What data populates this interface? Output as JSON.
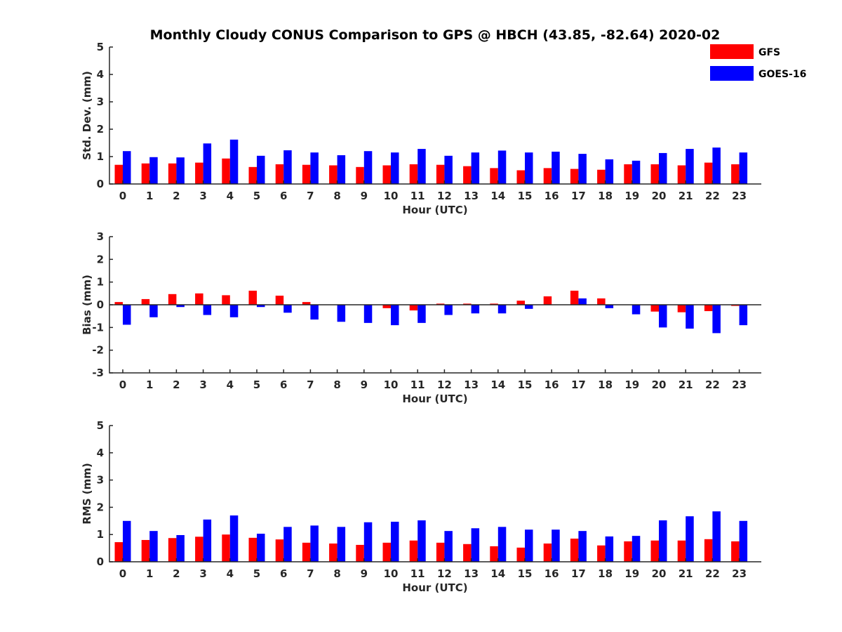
{
  "figure_title": "Monthly Cloudy CONUS Comparison to GPS @ HBCH (43.85, -82.64) 2020-02",
  "legend": [
    {
      "label": "GFS",
      "color": "#ff0000"
    },
    {
      "label": "GOES-16",
      "color": "#0000ff"
    }
  ],
  "chart_data": [
    {
      "type": "bar",
      "title": "Monthly Cloudy CONUS Comparison to GPS @ HBCH (43.85, -82.64) 2020-02",
      "xlabel": "Hour (UTC)",
      "ylabel": "Std. Dev. (mm)",
      "ylim": [
        0,
        5
      ],
      "yticks": [
        "0",
        "1",
        "2",
        "3",
        "4",
        "5"
      ],
      "categories": [
        "0",
        "1",
        "2",
        "3",
        "4",
        "5",
        "6",
        "7",
        "8",
        "9",
        "10",
        "11",
        "12",
        "13",
        "14",
        "15",
        "16",
        "17",
        "18",
        "19",
        "20",
        "21",
        "22",
        "23"
      ],
      "series": [
        {
          "name": "GFS",
          "color": "#ff0000",
          "values": [
            0.7,
            0.75,
            0.75,
            0.78,
            0.93,
            0.62,
            0.72,
            0.7,
            0.68,
            0.62,
            0.68,
            0.72,
            0.7,
            0.65,
            0.58,
            0.5,
            0.58,
            0.55,
            0.52,
            0.72,
            0.72,
            0.68,
            0.78,
            0.72
          ]
        },
        {
          "name": "GOES-16",
          "color": "#0000ff",
          "values": [
            1.2,
            0.98,
            0.97,
            1.48,
            1.62,
            1.03,
            1.23,
            1.15,
            1.05,
            1.2,
            1.15,
            1.28,
            1.03,
            1.15,
            1.22,
            1.15,
            1.18,
            1.1,
            0.9,
            0.85,
            1.13,
            1.28,
            1.33,
            1.15
          ]
        }
      ]
    },
    {
      "type": "bar",
      "xlabel": "Hour (UTC)",
      "ylabel": "Bias (mm)",
      "ylim": [
        -3,
        3
      ],
      "yticks": [
        "-3",
        "-2",
        "-1",
        "0",
        "1",
        "2",
        "3"
      ],
      "categories": [
        "0",
        "1",
        "2",
        "3",
        "4",
        "5",
        "6",
        "7",
        "8",
        "9",
        "10",
        "11",
        "12",
        "13",
        "14",
        "15",
        "16",
        "17",
        "18",
        "19",
        "20",
        "21",
        "22",
        "23"
      ],
      "series": [
        {
          "name": "GFS",
          "color": "#ff0000",
          "values": [
            0.12,
            0.25,
            0.47,
            0.5,
            0.42,
            0.62,
            0.4,
            0.12,
            0,
            0,
            -0.15,
            -0.25,
            0.05,
            0.05,
            0.05,
            0.18,
            0.37,
            0.62,
            0.28,
            0,
            -0.3,
            -0.33,
            -0.28,
            -0.05
          ]
        },
        {
          "name": "GOES-16",
          "color": "#0000ff",
          "values": [
            -0.88,
            -0.55,
            -0.1,
            -0.45,
            -0.55,
            -0.1,
            -0.35,
            -0.65,
            -0.75,
            -0.8,
            -0.9,
            -0.8,
            -0.45,
            -0.38,
            -0.38,
            -0.18,
            0,
            0.28,
            -0.15,
            -0.42,
            -1.0,
            -1.05,
            -1.25,
            -0.9
          ]
        }
      ]
    },
    {
      "type": "bar",
      "xlabel": "Hour (UTC)",
      "ylabel": "RMS (mm)",
      "ylim": [
        0,
        5
      ],
      "yticks": [
        "0",
        "1",
        "2",
        "3",
        "4",
        "5"
      ],
      "categories": [
        "0",
        "1",
        "2",
        "3",
        "4",
        "5",
        "6",
        "7",
        "8",
        "9",
        "10",
        "11",
        "12",
        "13",
        "14",
        "15",
        "16",
        "17",
        "18",
        "19",
        "20",
        "21",
        "22",
        "23"
      ],
      "series": [
        {
          "name": "GFS",
          "color": "#ff0000",
          "values": [
            0.72,
            0.8,
            0.87,
            0.92,
            1.0,
            0.88,
            0.82,
            0.7,
            0.67,
            0.62,
            0.7,
            0.78,
            0.7,
            0.65,
            0.57,
            0.52,
            0.67,
            0.85,
            0.6,
            0.75,
            0.78,
            0.78,
            0.83,
            0.75
          ]
        },
        {
          "name": "GOES-16",
          "color": "#0000ff",
          "values": [
            1.5,
            1.13,
            0.98,
            1.55,
            1.7,
            1.03,
            1.28,
            1.33,
            1.28,
            1.45,
            1.47,
            1.52,
            1.13,
            1.23,
            1.28,
            1.18,
            1.18,
            1.13,
            0.93,
            0.95,
            1.52,
            1.67,
            1.85,
            1.5
          ]
        }
      ]
    }
  ]
}
